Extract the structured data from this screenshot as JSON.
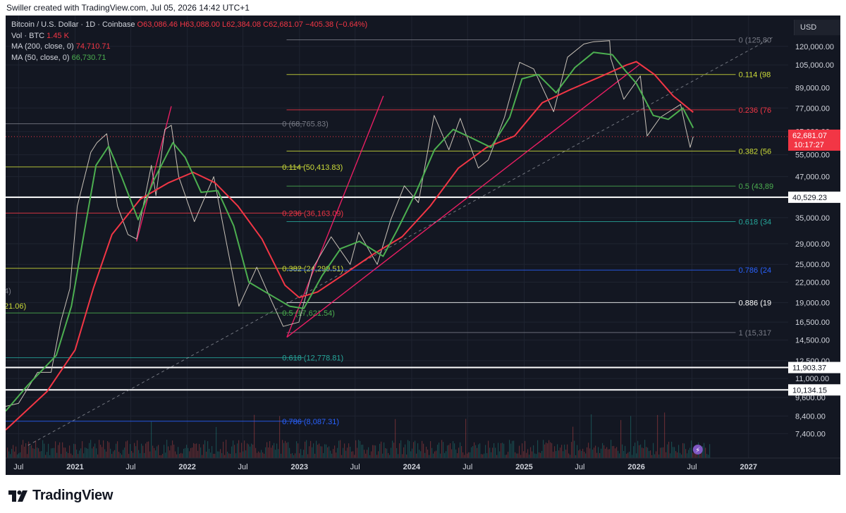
{
  "header": {
    "credit": "Swiller created with TradingView.com, Jul 05, 2026 14:42 UTC+1"
  },
  "legend": {
    "symbol": "Bitcoin / U.S. Dollar · 1D · Coinbase",
    "o_label": "O",
    "o": "63,086.46",
    "h_label": "H",
    "h": "63,088.00",
    "l_label": "L",
    "l": "62,384.08",
    "c_label": "C",
    "c": "62,681.07",
    "change": "−405.38 (−0.64%)",
    "vol_label": "Vol · BTC",
    "vol": "1.45 K",
    "ma200_label": "MA (200, close, 0)",
    "ma200": "74,710.71",
    "ma50_label": "MA (50, close, 0)",
    "ma50": "66,730.71"
  },
  "currency": "USD",
  "footer": {
    "brand": "TradingView"
  },
  "colors": {
    "background": "#131722",
    "ma200": "#f23645",
    "ma50": "#4caf50",
    "fib_line": "#e91e63",
    "text": "#d1d4dc"
  },
  "chart_data": {
    "type": "line",
    "title": "Bitcoin / U.S. Dollar · 1D · Coinbase",
    "y_scale": "log",
    "ylim": [
      6800,
      130000
    ],
    "xlim": [
      "2020-05-20",
      "2027-05-10"
    ],
    "y_ticks": [
      "120,000.00",
      "105,000.00",
      "89,000.00",
      "77,000.00",
      "65,000.00",
      "55,000.00",
      "47,000.00",
      "35,000.00",
      "29,000.00",
      "25,000.00",
      "22,000.00",
      "19,000.00",
      "16,500.00",
      "14,500.00",
      "12,500.00",
      "11,000.00",
      "9,600.00",
      "8,400.00",
      "7,400.00"
    ],
    "x_ticks": [
      {
        "label": "Jul",
        "date": "2020-07-01"
      },
      {
        "label": "2021",
        "date": "2021-01-01"
      },
      {
        "label": "Jul",
        "date": "2021-07-01"
      },
      {
        "label": "2022",
        "date": "2022-01-01"
      },
      {
        "label": "Jul",
        "date": "2022-07-01"
      },
      {
        "label": "2023",
        "date": "2023-01-01"
      },
      {
        "label": "Jul",
        "date": "2023-07-01"
      },
      {
        "label": "2024",
        "date": "2024-01-01"
      },
      {
        "label": "Jul",
        "date": "2024-07-01"
      },
      {
        "label": "2025",
        "date": "2025-01-01"
      },
      {
        "label": "Jul",
        "date": "2025-07-01"
      },
      {
        "label": "2026",
        "date": "2026-01-01"
      },
      {
        "label": "Jul",
        "date": "2026-07-01"
      },
      {
        "label": "2027",
        "date": "2027-01-01"
      }
    ],
    "series": [
      {
        "name": "Bitcoin / U.S. Dollar",
        "kind": "price",
        "points": [
          [
            "2020-05-20",
            9000
          ],
          [
            "2020-07-01",
            9200
          ],
          [
            "2020-09-01",
            11500
          ],
          [
            "2020-10-15",
            11500
          ],
          [
            "2020-11-15",
            16500
          ],
          [
            "2020-12-15",
            21000
          ],
          [
            "2021-01-08",
            38000
          ],
          [
            "2021-02-21",
            56000
          ],
          [
            "2021-03-13",
            60000
          ],
          [
            "2021-04-14",
            64000
          ],
          [
            "2021-05-19",
            38000
          ],
          [
            "2021-06-22",
            31000
          ],
          [
            "2021-07-20",
            30000
          ],
          [
            "2021-09-06",
            51000
          ],
          [
            "2021-09-21",
            41000
          ],
          [
            "2021-10-20",
            66000
          ],
          [
            "2021-11-10",
            68000
          ],
          [
            "2021-12-04",
            47000
          ],
          [
            "2022-01-24",
            34000
          ],
          [
            "2022-03-28",
            47000
          ],
          [
            "2022-05-12",
            28000
          ],
          [
            "2022-06-18",
            18500
          ],
          [
            "2022-08-15",
            24500
          ],
          [
            "2022-10-01",
            19300
          ],
          [
            "2022-11-09",
            16000
          ],
          [
            "2022-12-30",
            16500
          ],
          [
            "2023-02-15",
            24500
          ],
          [
            "2023-04-14",
            30500
          ],
          [
            "2023-06-15",
            25000
          ],
          [
            "2023-07-13",
            31500
          ],
          [
            "2023-09-11",
            25000
          ],
          [
            "2023-10-25",
            34500
          ],
          [
            "2023-12-08",
            44000
          ],
          [
            "2024-01-23",
            39000
          ],
          [
            "2024-03-14",
            73000
          ],
          [
            "2024-05-01",
            57000
          ],
          [
            "2024-06-07",
            71500
          ],
          [
            "2024-08-05",
            50000
          ],
          [
            "2024-09-06",
            53000
          ],
          [
            "2024-10-29",
            72000
          ],
          [
            "2024-12-17",
            107000
          ],
          [
            "2025-02-01",
            102000
          ],
          [
            "2025-04-07",
            75000
          ],
          [
            "2025-05-22",
            111000
          ],
          [
            "2025-07-14",
            122000
          ],
          [
            "2025-08-14",
            124000
          ],
          [
            "2025-10-06",
            125000
          ],
          [
            "2025-10-10",
            110000
          ],
          [
            "2025-11-21",
            82000
          ],
          [
            "2026-01-14",
            97000
          ],
          [
            "2026-02-05",
            63000
          ],
          [
            "2026-03-20",
            72000
          ],
          [
            "2026-05-25",
            79000
          ],
          [
            "2026-06-10",
            67000
          ],
          [
            "2026-06-25",
            58000
          ],
          [
            "2026-07-05",
            62681
          ]
        ]
      },
      {
        "name": "MA (200, close, 0)",
        "kind": "ma200",
        "points": [
          [
            "2020-05-20",
            7600
          ],
          [
            "2020-10-01",
            10000
          ],
          [
            "2021-01-01",
            13500
          ],
          [
            "2021-03-01",
            21000
          ],
          [
            "2021-05-01",
            31000
          ],
          [
            "2021-08-01",
            40000
          ],
          [
            "2021-11-01",
            45000
          ],
          [
            "2022-01-20",
            48500
          ],
          [
            "2022-04-01",
            45000
          ],
          [
            "2022-06-15",
            38000
          ],
          [
            "2022-09-01",
            30000
          ],
          [
            "2022-11-15",
            21500
          ],
          [
            "2022-12-31",
            19700
          ],
          [
            "2023-03-01",
            20500
          ],
          [
            "2023-06-01",
            23500
          ],
          [
            "2023-09-01",
            27000
          ],
          [
            "2023-12-01",
            30500
          ],
          [
            "2024-03-01",
            38000
          ],
          [
            "2024-06-01",
            50000
          ],
          [
            "2024-09-01",
            58000
          ],
          [
            "2024-12-01",
            63000
          ],
          [
            "2025-03-01",
            80000
          ],
          [
            "2025-06-01",
            88000
          ],
          [
            "2025-09-01",
            96000
          ],
          [
            "2025-12-01",
            105000
          ],
          [
            "2026-01-01",
            107500
          ],
          [
            "2026-03-01",
            98000
          ],
          [
            "2026-05-01",
            84000
          ],
          [
            "2026-07-05",
            74710.71
          ]
        ]
      },
      {
        "name": "MA (50, close, 0)",
        "kind": "ma50",
        "points": [
          [
            "2020-05-20",
            8700
          ],
          [
            "2020-08-01",
            10500
          ],
          [
            "2020-11-01",
            13000
          ],
          [
            "2020-12-20",
            18500
          ],
          [
            "2021-02-01",
            32000
          ],
          [
            "2021-03-10",
            51000
          ],
          [
            "2021-04-20",
            58500
          ],
          [
            "2021-06-01",
            47000
          ],
          [
            "2021-07-25",
            34500
          ],
          [
            "2021-09-15",
            46000
          ],
          [
            "2021-11-15",
            60000
          ],
          [
            "2021-12-25",
            54000
          ],
          [
            "2022-02-15",
            42000
          ],
          [
            "2022-04-10",
            42500
          ],
          [
            "2022-06-01",
            33000
          ],
          [
            "2022-07-20",
            22000
          ],
          [
            "2022-10-01",
            20000
          ],
          [
            "2022-11-30",
            18500
          ],
          [
            "2023-01-15",
            18200
          ],
          [
            "2023-03-15",
            23000
          ],
          [
            "2023-05-15",
            28000
          ],
          [
            "2023-07-15",
            29500
          ],
          [
            "2023-09-30",
            26500
          ],
          [
            "2023-11-15",
            32000
          ],
          [
            "2024-01-15",
            42000
          ],
          [
            "2024-03-15",
            57000
          ],
          [
            "2024-05-15",
            66000
          ],
          [
            "2024-07-15",
            62000
          ],
          [
            "2024-09-15",
            58000
          ],
          [
            "2024-11-15",
            72000
          ],
          [
            "2024-12-25",
            95000
          ],
          [
            "2025-02-15",
            98000
          ],
          [
            "2025-04-15",
            86000
          ],
          [
            "2025-06-15",
            103000
          ],
          [
            "2025-08-15",
            115000
          ],
          [
            "2025-10-15",
            113000
          ],
          [
            "2025-11-25",
            101000
          ],
          [
            "2026-01-01",
            92000
          ],
          [
            "2026-02-25",
            73000
          ],
          [
            "2026-04-15",
            71000
          ],
          [
            "2026-06-01",
            77000
          ],
          [
            "2026-07-05",
            66730.71
          ]
        ]
      }
    ],
    "fib_levels_left": [
      {
        "label": "0 (68,765.83)",
        "value": 68765.83
      },
      {
        "label": "0.114 (50,413.83)",
        "value": 50413.83
      },
      {
        "label": "0.236 (36,163.09)",
        "value": 36163.09
      },
      {
        "label": "0.382 (24,299.51)",
        "value": 24299.51
      },
      {
        "label": "0.5 (17,621.54)",
        "value": 17621.54
      },
      {
        "label": "0.618 (12,778.81)",
        "value": 12778.81
      },
      {
        "label": "0.786 (8,087.31)",
        "value": 8087.31
      }
    ],
    "fib_levels_right": [
      {
        "label": "0 (125,80",
        "value": 125800
      },
      {
        "label": "0.114 (98",
        "value": 98000
      },
      {
        "label": "0.236 (76",
        "value": 76000
      },
      {
        "label": "0.382 (56",
        "value": 56500
      },
      {
        "label": "0.5 (43,89",
        "value": 43890
      },
      {
        "label": "0.618 (34",
        "value": 34000
      },
      {
        "label": "0.786 (24",
        "value": 24000
      },
      {
        "label": "0.886 (19",
        "value": 19000
      },
      {
        "label": "1 (15,317",
        "value": 15317
      }
    ],
    "horizontal_lines": [
      {
        "label": "40,529.23",
        "value": 40529.23
      },
      {
        "label": "11,903.37",
        "value": 11903.37
      },
      {
        "label": "10,134.15",
        "value": 10134.15
      }
    ],
    "last_price": {
      "label": "62,681.07",
      "countdown": "10:17:27",
      "value": 62681.07
    },
    "trend_lines": [
      {
        "from": [
          "2022-11-21",
          14800
        ],
        "to": [
          "2023-10-01",
          84000
        ]
      },
      {
        "from": [
          "2022-11-21",
          14800
        ],
        "to": [
          "2026-01-10",
          105000
        ]
      },
      {
        "from": [
          "2020-08-01",
          6800
        ],
        "to": [
          "2027-03-20",
          128000
        ],
        "style": "dashed"
      },
      {
        "from": [
          "2021-07-20",
          29500
        ],
        "to": [
          "2021-11-10",
          78000
        ]
      }
    ],
    "left_cut_labels": [
      "21.06)",
      "4)"
    ]
  }
}
